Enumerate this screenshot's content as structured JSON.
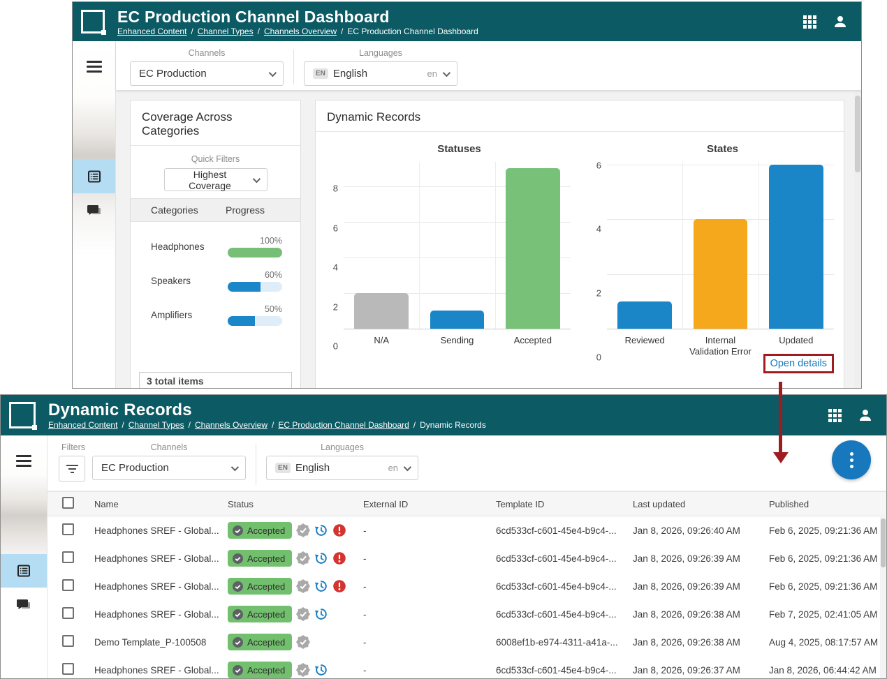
{
  "colors": {
    "appbar_teal": "#0b5a64",
    "accent_blue": "#1778bd",
    "annotation_red": "#9e1c20",
    "badge_green": "#72c06e",
    "sidebar_highlight": "#b4dcf3"
  },
  "top_panel": {
    "header": {
      "title": "EC Production Channel Dashboard",
      "breadcrumbs": [
        "Enhanced Content",
        "Channel Types",
        "Channels Overview",
        "EC Production Channel Dashboard"
      ]
    },
    "toolbar": {
      "channels_label": "Channels",
      "channels_value": "EC Production",
      "languages_label": "Languages",
      "language_badge": "EN",
      "language_value": "English",
      "language_code": "en"
    },
    "coverage": {
      "title": "Coverage Across Categories",
      "quick_filters_label": "Quick Filters",
      "quick_filter_value": "Highest Coverage",
      "columns": [
        "Categories",
        "Progress"
      ],
      "rows": [
        {
          "name": "Headphones",
          "percent": "100%",
          "value": 100,
          "color": "#77bf76"
        },
        {
          "name": "Speakers",
          "percent": "60%",
          "value": 60,
          "color": "#1b87c9"
        },
        {
          "name": "Amplifiers",
          "percent": "50%",
          "value": 50,
          "color": "#1b87c9"
        }
      ],
      "footer": "3 total items"
    },
    "records_card": {
      "title": "Dynamic Records",
      "open_details_label": "Open details"
    }
  },
  "chart_data": [
    {
      "type": "bar",
      "title": "Statuses",
      "categories": [
        "N/A",
        "Sending",
        "Accepted"
      ],
      "values": [
        2,
        1,
        9
      ],
      "colors": [
        "#b9b9b9",
        "#1a86c8",
        "#78c178"
      ],
      "ylim": [
        0,
        9.35
      ],
      "yticks": [
        0,
        2,
        4,
        6,
        8
      ],
      "grid": true,
      "legend": "none"
    },
    {
      "type": "bar",
      "title": "States",
      "categories": [
        "Reviewed",
        "Internal Validation Error",
        "Updated"
      ],
      "values": [
        1,
        4,
        6
      ],
      "colors": [
        "#1a86c8",
        "#f6a81c",
        "#1a86c8"
      ],
      "ylim": [
        0,
        6.1
      ],
      "yticks": [
        0,
        2,
        4,
        6
      ],
      "grid": true,
      "legend": "none"
    }
  ],
  "bottom_panel": {
    "header": {
      "title": "Dynamic Records",
      "breadcrumbs": [
        "Enhanced Content",
        "Channel Types",
        "Channels Overview",
        "EC Production Channel Dashboard",
        "Dynamic Records"
      ]
    },
    "toolbar": {
      "filters_label": "Filters",
      "channels_label": "Channels",
      "channels_value": "EC Production",
      "languages_label": "Languages",
      "language_badge": "EN",
      "language_value": "English",
      "language_code": "en"
    },
    "fab_icon": "kebab-menu-icon",
    "table": {
      "columns": [
        "Name",
        "Status",
        "External ID",
        "Template ID",
        "Last updated",
        "Published"
      ],
      "rows": [
        {
          "name": "Headphones SREF - Global...",
          "status": "Accepted",
          "icons": [
            "seal-check",
            "history",
            "error"
          ],
          "external_id": "-",
          "template_id": "6cd533cf-c601-45e4-b9c4-...",
          "last_updated": "Jan 8, 2026, 09:26:40 AM",
          "published": "Feb 6, 2025, 09:21:36 AM"
        },
        {
          "name": "Headphones SREF - Global...",
          "status": "Accepted",
          "icons": [
            "seal-check",
            "history",
            "error"
          ],
          "external_id": "-",
          "template_id": "6cd533cf-c601-45e4-b9c4-...",
          "last_updated": "Jan 8, 2026, 09:26:39 AM",
          "published": "Feb 6, 2025, 09:21:36 AM"
        },
        {
          "name": "Headphones SREF - Global...",
          "status": "Accepted",
          "icons": [
            "seal-check",
            "history",
            "error"
          ],
          "external_id": "-",
          "template_id": "6cd533cf-c601-45e4-b9c4-...",
          "last_updated": "Jan 8, 2026, 09:26:39 AM",
          "published": "Feb 6, 2025, 09:21:36 AM"
        },
        {
          "name": "Headphones SREF - Global...",
          "status": "Accepted",
          "icons": [
            "seal-check",
            "history"
          ],
          "external_id": "-",
          "template_id": "6cd533cf-c601-45e4-b9c4-...",
          "last_updated": "Jan 8, 2026, 09:26:38 AM",
          "published": "Feb 7, 2025, 02:41:05 AM"
        },
        {
          "name": "Demo Template_P-100508",
          "status": "Accepted",
          "icons": [
            "seal-check"
          ],
          "external_id": "-",
          "template_id": "6008ef1b-e974-4311-a41a-...",
          "last_updated": "Jan 8, 2026, 09:26:38 AM",
          "published": "Aug 4, 2025, 08:17:57 AM"
        },
        {
          "name": "Headphones SREF - Global...",
          "status": "Accepted",
          "icons": [
            "seal-check",
            "history"
          ],
          "external_id": "-",
          "template_id": "6cd533cf-c601-45e4-b9c4-...",
          "last_updated": "Jan 8, 2026, 09:26:37 AM",
          "published": "Jan 8, 2026, 06:44:42 AM"
        }
      ]
    }
  },
  "annotation": {
    "target": "Open details",
    "color": "#9e1c20"
  }
}
